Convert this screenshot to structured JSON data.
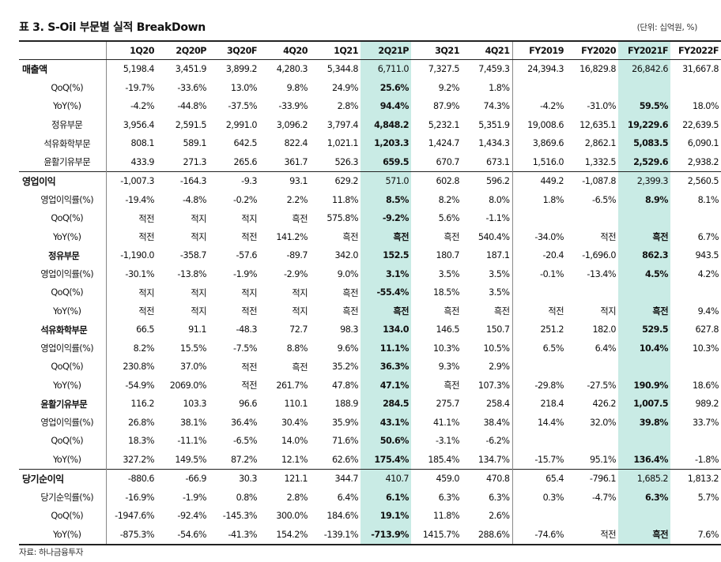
{
  "title": "표 3. S-Oil 부문별 실적 BreakDown",
  "unit": "(단위: 십억원, %)",
  "source": "자료: 하나금융투자",
  "columns": [
    "1Q20",
    "2Q20P",
    "3Q20F",
    "4Q20",
    "1Q21",
    "2Q21P",
    "3Q21",
    "4Q21",
    "FY2019",
    "FY2020",
    "FY2021F",
    "FY2022F"
  ],
  "highlight_columns": [
    5,
    10
  ],
  "rows": [
    {
      "label": "매출액",
      "style": "main",
      "group_start": true,
      "values": [
        "5,198.4",
        "3,451.9",
        "3,899.2",
        "4,280.3",
        "5,344.8",
        "6,711.0",
        "7,327.5",
        "7,459.3",
        "24,394.3",
        "16,829.8",
        "26,842.6",
        "31,667.8"
      ]
    },
    {
      "label": "QoQ(%)",
      "style": "sub",
      "values": [
        "-19.7%",
        "-33.6%",
        "13.0%",
        "9.8%",
        "24.9%",
        "25.6%",
        "9.2%",
        "1.8%",
        "",
        "",
        "",
        ""
      ]
    },
    {
      "label": "YoY(%)",
      "style": "sub",
      "values": [
        "-4.2%",
        "-44.8%",
        "-37.5%",
        "-33.9%",
        "2.8%",
        "94.4%",
        "87.9%",
        "74.3%",
        "-4.2%",
        "-31.0%",
        "59.5%",
        "18.0%"
      ]
    },
    {
      "label": "정유부문",
      "style": "sect-plain",
      "values": [
        "3,956.4",
        "2,591.5",
        "2,991.0",
        "3,096.2",
        "3,797.4",
        "4,848.2",
        "5,232.1",
        "5,351.9",
        "19,008.6",
        "12,635.1",
        "19,229.6",
        "22,639.5"
      ]
    },
    {
      "label": "석유화학부문",
      "style": "sect-plain",
      "values": [
        "808.1",
        "589.1",
        "642.5",
        "822.4",
        "1,021.1",
        "1,203.3",
        "1,424.7",
        "1,434.3",
        "3,869.6",
        "2,862.1",
        "5,083.5",
        "6,090.1"
      ]
    },
    {
      "label": "윤활기유부문",
      "style": "sect-plain",
      "values": [
        "433.9",
        "271.3",
        "265.6",
        "361.7",
        "526.3",
        "659.5",
        "670.7",
        "673.1",
        "1,516.0",
        "1,332.5",
        "2,529.6",
        "2,938.2"
      ]
    },
    {
      "label": "영업이익",
      "style": "main",
      "group_start": true,
      "values": [
        "-1,007.3",
        "-164.3",
        "-9.3",
        "93.1",
        "629.2",
        "571.0",
        "602.8",
        "596.2",
        "449.2",
        "-1,087.8",
        "2,399.3",
        "2,560.5"
      ]
    },
    {
      "label": "영업이익률(%)",
      "style": "sub",
      "values": [
        "-19.4%",
        "-4.8%",
        "-0.2%",
        "2.2%",
        "11.8%",
        "8.5%",
        "8.2%",
        "8.0%",
        "1.8%",
        "-6.5%",
        "8.9%",
        "8.1%"
      ]
    },
    {
      "label": "QoQ(%)",
      "style": "sub",
      "values": [
        "적전",
        "적지",
        "적지",
        "흑전",
        "575.8%",
        "-9.2%",
        "5.6%",
        "-1.1%",
        "",
        "",
        "",
        ""
      ]
    },
    {
      "label": "YoY(%)",
      "style": "sub",
      "values": [
        "적전",
        "적지",
        "적전",
        "141.2%",
        "흑전",
        "흑전",
        "흑전",
        "540.4%",
        "-34.0%",
        "적전",
        "흑전",
        "6.7%"
      ]
    },
    {
      "label": "정유부문",
      "style": "sect",
      "values": [
        "-1,190.0",
        "-358.7",
        "-57.6",
        "-89.7",
        "342.0",
        "152.5",
        "180.7",
        "187.1",
        "-20.4",
        "-1,696.0",
        "862.3",
        "943.5"
      ]
    },
    {
      "label": "영업이익률(%)",
      "style": "sub",
      "values": [
        "-30.1%",
        "-13.8%",
        "-1.9%",
        "-2.9%",
        "9.0%",
        "3.1%",
        "3.5%",
        "3.5%",
        "-0.1%",
        "-13.4%",
        "4.5%",
        "4.2%"
      ]
    },
    {
      "label": "QoQ(%)",
      "style": "sub",
      "values": [
        "적지",
        "적지",
        "적지",
        "적지",
        "흑전",
        "-55.4%",
        "18.5%",
        "3.5%",
        "",
        "",
        "",
        ""
      ]
    },
    {
      "label": "YoY(%)",
      "style": "sub",
      "values": [
        "적전",
        "적지",
        "적전",
        "적지",
        "흑전",
        "흑전",
        "흑전",
        "흑전",
        "적전",
        "적지",
        "흑전",
        "9.4%"
      ]
    },
    {
      "label": "석유화학부문",
      "style": "sect",
      "values": [
        "66.5",
        "91.1",
        "-48.3",
        "72.7",
        "98.3",
        "134.0",
        "146.5",
        "150.7",
        "251.2",
        "182.0",
        "529.5",
        "627.8"
      ]
    },
    {
      "label": "영업이익률(%)",
      "style": "sub",
      "values": [
        "8.2%",
        "15.5%",
        "-7.5%",
        "8.8%",
        "9.6%",
        "11.1%",
        "10.3%",
        "10.5%",
        "6.5%",
        "6.4%",
        "10.4%",
        "10.3%"
      ]
    },
    {
      "label": "QoQ(%)",
      "style": "sub",
      "values": [
        "230.8%",
        "37.0%",
        "적전",
        "흑전",
        "35.2%",
        "36.3%",
        "9.3%",
        "2.9%",
        "",
        "",
        "",
        ""
      ]
    },
    {
      "label": "YoY(%)",
      "style": "sub",
      "values": [
        "-54.9%",
        "2069.0%",
        "적전",
        "261.7%",
        "47.8%",
        "47.1%",
        "흑전",
        "107.3%",
        "-29.8%",
        "-27.5%",
        "190.9%",
        "18.6%"
      ]
    },
    {
      "label": "윤활기유부문",
      "style": "sect",
      "values": [
        "116.2",
        "103.3",
        "96.6",
        "110.1",
        "188.9",
        "284.5",
        "275.7",
        "258.4",
        "218.4",
        "426.2",
        "1,007.5",
        "989.2"
      ]
    },
    {
      "label": "영업이익률(%)",
      "style": "sub",
      "values": [
        "26.8%",
        "38.1%",
        "36.4%",
        "30.4%",
        "35.9%",
        "43.1%",
        "41.1%",
        "38.4%",
        "14.4%",
        "32.0%",
        "39.8%",
        "33.7%"
      ]
    },
    {
      "label": "QoQ(%)",
      "style": "sub",
      "values": [
        "18.3%",
        "-11.1%",
        "-6.5%",
        "14.0%",
        "71.6%",
        "50.6%",
        "-3.1%",
        "-6.2%",
        "",
        "",
        "",
        ""
      ]
    },
    {
      "label": "YoY(%)",
      "style": "sub",
      "values": [
        "327.2%",
        "149.5%",
        "87.2%",
        "12.1%",
        "62.6%",
        "175.4%",
        "185.4%",
        "134.7%",
        "-15.7%",
        "95.1%",
        "136.4%",
        "-1.8%"
      ]
    },
    {
      "label": "당기순이익",
      "style": "main",
      "group_start": true,
      "values": [
        "-880.6",
        "-66.9",
        "30.3",
        "121.1",
        "344.7",
        "410.7",
        "459.0",
        "470.8",
        "65.4",
        "-796.1",
        "1,685.2",
        "1,813.2"
      ]
    },
    {
      "label": "당기순익률(%)",
      "style": "sub",
      "values": [
        "-16.9%",
        "-1.9%",
        "0.8%",
        "2.8%",
        "6.4%",
        "6.1%",
        "6.3%",
        "6.3%",
        "0.3%",
        "-4.7%",
        "6.3%",
        "5.7%"
      ]
    },
    {
      "label": "QoQ(%)",
      "style": "sub",
      "values": [
        "-1947.6%",
        "-92.4%",
        "-145.3%",
        "300.0%",
        "184.6%",
        "19.1%",
        "11.8%",
        "2.6%",
        "",
        "",
        "",
        ""
      ]
    },
    {
      "label": "YoY(%)",
      "style": "sub",
      "last": true,
      "values": [
        "-875.3%",
        "-54.6%",
        "-41.3%",
        "154.2%",
        "-139.1%",
        "-713.9%",
        "1415.7%",
        "288.6%",
        "-74.6%",
        "적전",
        "흑전",
        "7.6%"
      ]
    }
  ]
}
